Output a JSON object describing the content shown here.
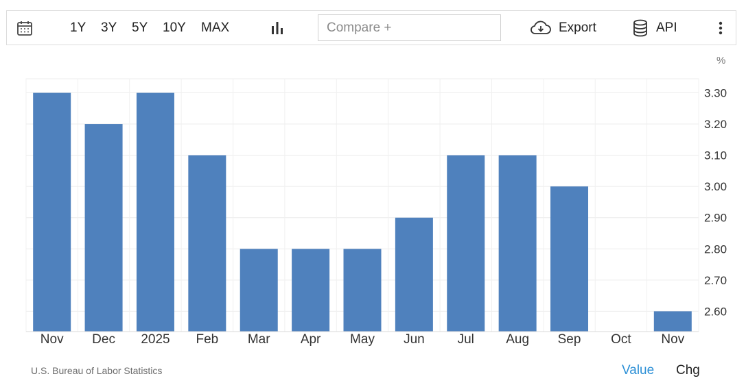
{
  "toolbar": {
    "calendar_icon": "calendar-icon",
    "ranges": [
      "1Y",
      "3Y",
      "5Y",
      "10Y",
      "MAX"
    ],
    "chart_type_icon": "bar-chart-icon",
    "compare_placeholder": "Compare +",
    "export_icon": "cloud-download-icon",
    "export_label": "Export",
    "api_icon": "database-icon",
    "api_label": "API",
    "more_icon": "vertical-dots-icon"
  },
  "footer": {
    "source": "U.S. Bureau of Labor Statistics",
    "value_label": "Value",
    "chg_label": "Chg"
  },
  "colors": {
    "bar": "#4f81bd",
    "accent": "#2b8fd6"
  },
  "chart_data": {
    "type": "bar",
    "unit": "%",
    "categories": [
      "Nov",
      "Dec",
      "2025",
      "Feb",
      "Mar",
      "Apr",
      "May",
      "Jun",
      "Jul",
      "Aug",
      "Sep",
      "Oct",
      "Nov"
    ],
    "values": [
      3.3,
      3.2,
      3.3,
      3.1,
      2.8,
      2.8,
      2.8,
      2.9,
      3.1,
      3.1,
      3.0,
      null,
      2.6
    ],
    "ylim": [
      2.535,
      3.345
    ],
    "yticks": [
      3.3,
      3.2,
      3.1,
      3.0,
      2.9,
      2.8,
      2.7,
      2.6
    ],
    "ytick_labels": [
      "3.30",
      "3.20",
      "3.10",
      "3.00",
      "2.90",
      "2.80",
      "2.70",
      "2.60"
    ],
    "grid": true,
    "y_axis_side": "right"
  }
}
